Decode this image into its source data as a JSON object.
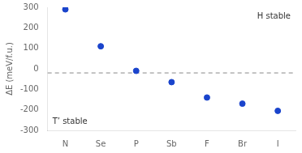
{
  "chart_data": {
    "type": "scatter",
    "categories": [
      "N",
      "Se",
      "P",
      "Sb",
      "F",
      "Br",
      "I"
    ],
    "values": [
      290,
      110,
      -10,
      -65,
      -140,
      -170,
      -205
    ],
    "color": "#1a44cc",
    "ylabel": "ΔE (meV/f.u.)",
    "ylim": [
      -300,
      300
    ],
    "yticks": [
      -300,
      -200,
      -100,
      0,
      100,
      200,
      300
    ],
    "reference_line": {
      "y": -20,
      "color": "#888888",
      "line_style": "dashed"
    },
    "annotations": [
      "H stable",
      "T’ stable"
    ],
    "grid": false
  }
}
